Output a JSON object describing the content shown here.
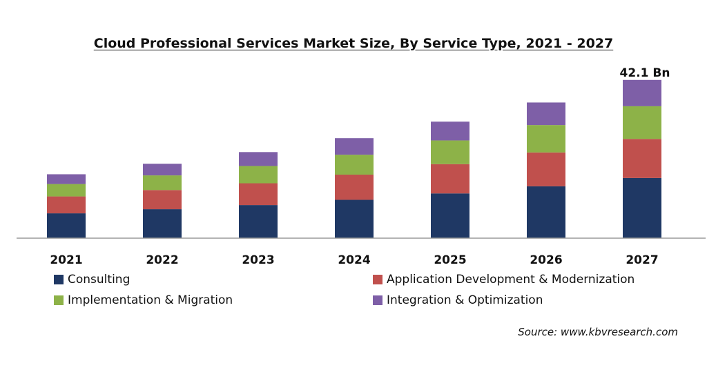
{
  "chart_data": {
    "type": "bar",
    "stacked": true,
    "title": "Cloud Professional Services Market Size, By Service Type, 2021 - 2027",
    "categories": [
      "2021",
      "2022",
      "2023",
      "2024",
      "2025",
      "2026",
      "2027"
    ],
    "series": [
      {
        "name": "Consulting",
        "color": "#1f3864",
        "values": [
          6.6,
          7.7,
          8.8,
          10.2,
          11.9,
          13.8,
          16.0
        ]
      },
      {
        "name": "Application Development & Modernization",
        "color": "#c0504d",
        "values": [
          4.5,
          5.1,
          5.8,
          6.7,
          7.8,
          9.0,
          10.4
        ]
      },
      {
        "name": "Implementation & Migration",
        "color": "#8db248",
        "values": [
          3.3,
          3.9,
          4.6,
          5.3,
          6.3,
          7.3,
          8.7
        ]
      },
      {
        "name": "Integration & Optimization",
        "color": "#7e5fa7",
        "values": [
          2.6,
          3.1,
          3.7,
          4.4,
          5.0,
          6.0,
          7.0
        ]
      }
    ],
    "annotations": [
      {
        "category": "2027",
        "text": "42.1 Bn"
      }
    ],
    "ylim": [
      0,
      45
    ],
    "grid": false,
    "legend_position": "bottom"
  },
  "source": "Source: www.kbvresearch.com"
}
